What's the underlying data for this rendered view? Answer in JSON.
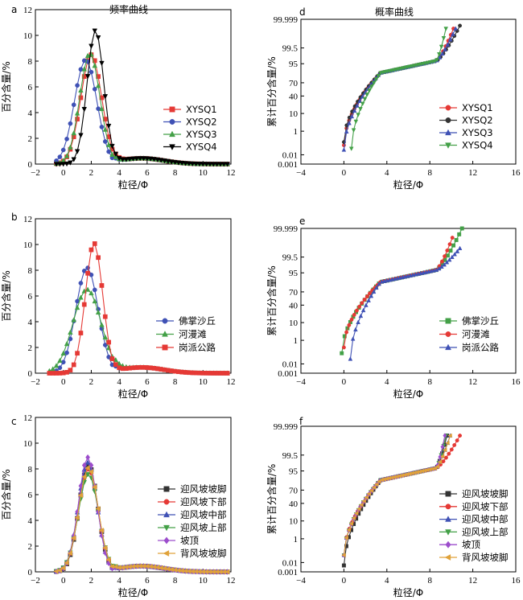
{
  "colors": {
    "red": "#e53935",
    "blue": "#3f51b5",
    "green": "#43a047",
    "black": "#000000",
    "darkgray": "#333333",
    "purple": "#9c4dcc",
    "orange": "#e0a23a"
  },
  "chart_data": [
    {
      "panel": "a",
      "type": "line",
      "title": "频率曲线",
      "xlabel": "粒径/Φ",
      "ylabel": "百分含量/%",
      "xlim": [
        -2,
        12
      ],
      "ylim": [
        0,
        12
      ],
      "xticks": [
        "−2",
        "0",
        "2",
        "4",
        "6",
        "8",
        "10",
        "12"
      ],
      "yticks": [
        "0",
        "2",
        "4",
        "6",
        "8",
        "10",
        "12"
      ],
      "legend_position": "right",
      "series": [
        {
          "name": "XYSQ1",
          "color": "#e53935",
          "marker": "square",
          "peak_x": 2.0,
          "peak_y": 8.5,
          "width": 0.75,
          "start": -0.5
        },
        {
          "name": "XYSQ2",
          "color": "#3f51b5",
          "marker": "circle",
          "peak_x": 1.6,
          "peak_y": 8.1,
          "width": 0.8,
          "start": -0.5
        },
        {
          "name": "XYSQ3",
          "color": "#43a047",
          "marker": "triangle",
          "peak_x": 1.9,
          "peak_y": 8.6,
          "width": 0.72,
          "start": -0.5
        },
        {
          "name": "XYSQ4",
          "color": "#000000",
          "marker": "triangle-down",
          "peak_x": 2.3,
          "peak_y": 10.4,
          "width": 0.6,
          "start": -0.5
        }
      ]
    },
    {
      "panel": "b",
      "type": "line",
      "title": "",
      "xlabel": "粒径/Φ",
      "ylabel": "百分含量/%",
      "xlim": [
        -2,
        12
      ],
      "ylim": [
        0,
        12
      ],
      "xticks": [
        "−2",
        "0",
        "2",
        "4",
        "6",
        "8",
        "10",
        "12"
      ],
      "yticks": [
        "0",
        "2",
        "4",
        "6",
        "8",
        "10",
        "12"
      ],
      "legend_position": "right",
      "series": [
        {
          "name": "佛掌沙丘",
          "color": "#3f51b5",
          "marker": "circle",
          "peak_x": 1.7,
          "peak_y": 8.2,
          "width": 0.8,
          "start": -1.0
        },
        {
          "name": "河漫滩",
          "color": "#43a047",
          "marker": "triangle",
          "peak_x": 1.7,
          "peak_y": 6.5,
          "width": 1.0,
          "start": -1.0
        },
        {
          "name": "岗派公路",
          "color": "#e53935",
          "marker": "square",
          "peak_x": 2.2,
          "peak_y": 10.1,
          "width": 0.62,
          "start": -1.0
        }
      ]
    },
    {
      "panel": "c",
      "type": "line",
      "title": "",
      "xlabel": "粒径/Φ",
      "ylabel": "百分含量/%",
      "xlim": [
        -2,
        12
      ],
      "ylim": [
        0,
        12
      ],
      "xticks": [
        "−2",
        "0",
        "2",
        "4",
        "6",
        "8",
        "10",
        "12"
      ],
      "yticks": [
        "0",
        "2",
        "4",
        "6",
        "8",
        "10",
        "12"
      ],
      "legend_position": "right",
      "series": [
        {
          "name": "迎风坡坡脚",
          "color": "#333333",
          "marker": "square",
          "peak_x": 1.8,
          "peak_y": 8.3,
          "width": 0.68,
          "start": -0.5
        },
        {
          "name": "迎风坡下部",
          "color": "#e53935",
          "marker": "circle",
          "peak_x": 1.8,
          "peak_y": 8.0,
          "width": 0.7,
          "start": -0.5
        },
        {
          "name": "迎风坡中部",
          "color": "#3f51b5",
          "marker": "triangle",
          "peak_x": 1.75,
          "peak_y": 8.5,
          "width": 0.68,
          "start": -0.5
        },
        {
          "name": "迎风坡上部",
          "color": "#43a047",
          "marker": "triangle-down",
          "peak_x": 1.8,
          "peak_y": 7.6,
          "width": 0.72,
          "start": -0.5
        },
        {
          "name": "坡顶",
          "color": "#9c4dcc",
          "marker": "diamond",
          "peak_x": 1.75,
          "peak_y": 8.9,
          "width": 0.66,
          "start": -0.5
        },
        {
          "name": "背风坡坡脚",
          "color": "#e0a23a",
          "marker": "triangle-left",
          "peak_x": 1.8,
          "peak_y": 8.1,
          "width": 0.7,
          "start": -0.5
        }
      ]
    },
    {
      "panel": "d",
      "type": "line",
      "title": "概率曲线",
      "xlabel": "粒径/Φ",
      "ylabel": "累计百分含量/%",
      "xlim": [
        -4,
        16
      ],
      "xticks": [
        "−4",
        "0",
        "4",
        "8",
        "12",
        "16"
      ],
      "yticks": [
        "0.001",
        "0.01",
        "1",
        "10",
        "40",
        "70",
        "95",
        "99.5",
        "99.999"
      ],
      "legend_position": "right",
      "series": [
        {
          "name": "XYSQ1",
          "color": "#e53935",
          "marker": "circle",
          "x_start": 0.0,
          "y_start": 0.08,
          "x_end": 10.2,
          "y_end": 99.99
        },
        {
          "name": "XYSQ2",
          "color": "#333333",
          "marker": "circle",
          "x_start": 0.0,
          "y_start": 0.15,
          "x_end": 10.8,
          "y_end": 99.995
        },
        {
          "name": "XYSQ3",
          "color": "#3f51b5",
          "marker": "triangle",
          "x_start": 0.0,
          "y_start": 0.03,
          "x_end": 10.4,
          "y_end": 99.99
        },
        {
          "name": "XYSQ4",
          "color": "#43a047",
          "marker": "triangle-down",
          "x_start": 0.7,
          "y_start": 0.04,
          "x_end": 9.5,
          "y_end": 99.99
        }
      ]
    },
    {
      "panel": "e",
      "type": "line",
      "title": "",
      "xlabel": "粒径/Φ",
      "ylabel": "累计百分含量/%",
      "xlim": [
        -4,
        16
      ],
      "xticks": [
        "−4",
        "0",
        "4",
        "8",
        "12",
        "16"
      ],
      "yticks": [
        "0.001",
        "0.01",
        "1",
        "10",
        "40",
        "70",
        "95",
        "99.5",
        "99.999"
      ],
      "legend_position": "right",
      "series": [
        {
          "name": "佛掌沙丘",
          "color": "#43a047",
          "marker": "square",
          "x_start": -0.2,
          "y_start": 0.1,
          "x_end": 11.0,
          "y_end": 99.999
        },
        {
          "name": "河漫滩",
          "color": "#e53935",
          "marker": "circle",
          "x_start": 0.0,
          "y_start": 0.3,
          "x_end": 10.1,
          "y_end": 99.99
        },
        {
          "name": "岗派公路",
          "color": "#3f51b5",
          "marker": "triangle",
          "x_start": 0.6,
          "y_start": 0.03,
          "x_end": 10.8,
          "y_end": 99.9
        }
      ]
    },
    {
      "panel": "f",
      "type": "line",
      "title": "",
      "xlabel": "粒径/Φ",
      "ylabel": "累计百分含量/%",
      "xlim": [
        -4,
        16
      ],
      "xticks": [
        "−4",
        "0",
        "4",
        "8",
        "12",
        "16"
      ],
      "yticks": [
        "0.001",
        "0.01",
        "1",
        "10",
        "40",
        "70",
        "95",
        "99.5",
        "99.999"
      ],
      "legend_position": "right",
      "series": [
        {
          "name": "迎风坡坡脚",
          "color": "#333333",
          "marker": "square",
          "x_start": 0.0,
          "y_start": 0.005,
          "x_end": 9.6,
          "y_end": 99.99
        },
        {
          "name": "迎风坡下部",
          "color": "#e53935",
          "marker": "circle",
          "x_start": 0.0,
          "y_start": 0.05,
          "x_end": 10.8,
          "y_end": 99.99
        },
        {
          "name": "迎风坡中部",
          "color": "#3f51b5",
          "marker": "triangle",
          "x_start": 0.0,
          "y_start": 0.05,
          "x_end": 9.9,
          "y_end": 99.99
        },
        {
          "name": "迎风坡上部",
          "color": "#43a047",
          "marker": "triangle-down",
          "x_start": 0.0,
          "y_start": 0.05,
          "x_end": 9.5,
          "y_end": 99.99
        },
        {
          "name": "坡顶",
          "color": "#9c4dcc",
          "marker": "diamond",
          "x_start": 0.0,
          "y_start": 0.05,
          "x_end": 9.4,
          "y_end": 99.99
        },
        {
          "name": "背风坡坡脚",
          "color": "#e0a23a",
          "marker": "triangle-left",
          "x_start": 0.0,
          "y_start": 0.05,
          "x_end": 9.9,
          "y_end": 99.99
        }
      ]
    }
  ]
}
